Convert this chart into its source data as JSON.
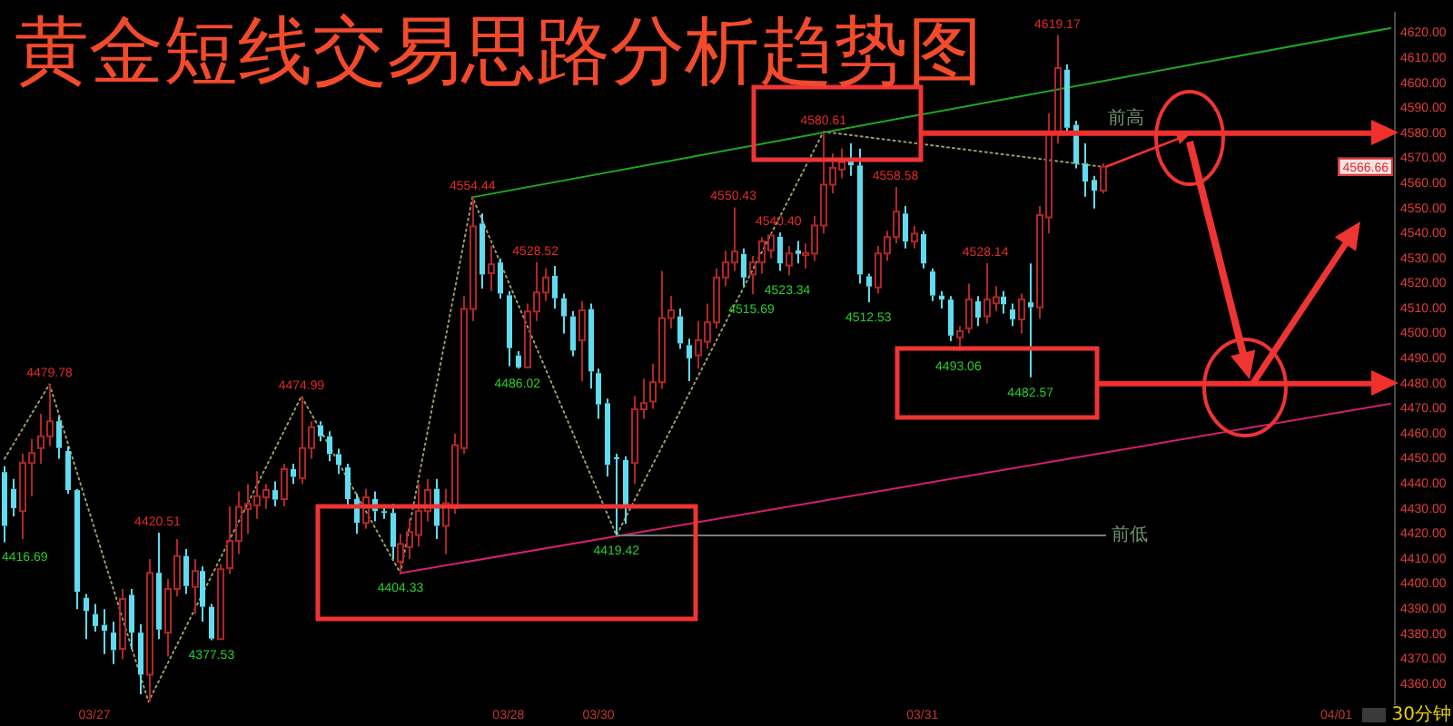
{
  "chart_data": {
    "type": "candlestick",
    "title": "黄金短线交易思路分析趋势图",
    "categories": [
      null,
      null,
      null,
      null,
      null,
      null,
      null,
      null,
      null,
      null,
      "03/27",
      null,
      null,
      null,
      null,
      null,
      null,
      null,
      null,
      null,
      null,
      null,
      null,
      null,
      null,
      null,
      null,
      null,
      null,
      null,
      null,
      null,
      null,
      null,
      null,
      null,
      null,
      null,
      null,
      null,
      null,
      null,
      null,
      null,
      null,
      null,
      null,
      null,
      null,
      null,
      null,
      null,
      null,
      null,
      null,
      null,
      "03/28",
      null,
      null,
      null,
      null,
      null,
      null,
      null,
      null,
      null,
      "03/30",
      null,
      null,
      null,
      null,
      null,
      null,
      null,
      null,
      null,
      null,
      null,
      null,
      null,
      null,
      null,
      null,
      null,
      null,
      null,
      null,
      null,
      null,
      null,
      null,
      null,
      null,
      null,
      null,
      null,
      null,
      null,
      null,
      null,
      null,
      null,
      "03/31",
      null,
      null,
      null,
      null,
      null,
      null,
      null,
      null,
      null,
      null,
      null,
      null,
      null,
      null,
      null,
      null,
      null,
      null,
      null,
      null,
      null,
      null,
      null,
      null,
      null,
      null,
      null,
      null,
      null,
      null,
      null,
      null,
      null,
      null,
      null,
      null,
      null,
      null,
      null,
      null,
      null,
      null,
      null,
      null,
      null,
      "04/01",
      null,
      null,
      null,
      null,
      null,
      null
    ],
    "ohlc": [
      [
        4444.7,
        4447.0,
        4416.69,
        4423.2
      ],
      [
        4438.0,
        4442.0,
        4427.0,
        4430.3
      ],
      [
        4429.1,
        4452.0,
        4418.0,
        4448.3
      ],
      [
        4448.3,
        4458.0,
        4435.0,
        4452.3
      ],
      [
        4454.3,
        4468.0,
        4448.0,
        4459.0
      ],
      [
        4459.0,
        4479.78,
        4455.0,
        4465.0
      ],
      [
        4465.0,
        4467.0,
        4450.0,
        4454.3
      ],
      [
        4453.1,
        4455.0,
        4436.0,
        4437.5
      ],
      [
        4437.5,
        4438.0,
        4390.0,
        4396.9
      ],
      [
        4394.5,
        4396.0,
        4378.0,
        4389.2
      ],
      [
        4388.0,
        4392.0,
        4381.0,
        4383.2
      ],
      [
        4383.7,
        4390.0,
        4372.0,
        4381.3
      ],
      [
        4380.6,
        4385.0,
        4368.0,
        4373.6
      ],
      [
        4374.1,
        4398.0,
        4370.0,
        4394.0
      ],
      [
        4395.7,
        4398.0,
        4374.0,
        4380.6
      ],
      [
        4380.6,
        4384.0,
        4356.0,
        4363.8
      ],
      [
        4363.8,
        4410.0,
        4353.0,
        4404.5
      ],
      [
        4404.5,
        4420.51,
        4378.0,
        4381.8
      ],
      [
        4380.6,
        4402.0,
        4371.0,
        4398.0
      ],
      [
        4398.0,
        4418.0,
        4395.0,
        4411.2
      ],
      [
        4411.2,
        4414.0,
        4396.0,
        4399.2
      ],
      [
        4398.8,
        4410.0,
        4388.0,
        4405.2
      ],
      [
        4405.2,
        4407.0,
        4385.0,
        4390.9
      ],
      [
        4390.9,
        4392.0,
        4377.53,
        4378.2
      ],
      [
        4378.0,
        4408.0,
        4377.8,
        4405.9
      ],
      [
        4406.4,
        4431.0,
        4404.0,
        4417.2
      ],
      [
        4417.2,
        4437.0,
        4412.0,
        4430.8
      ],
      [
        4429.9,
        4440.0,
        4420.0,
        4432.0
      ],
      [
        4431.5,
        4445.0,
        4426.0,
        4435.1
      ],
      [
        4434.6,
        4440.0,
        4430.0,
        4437.5
      ],
      [
        4437.5,
        4441.0,
        4431.0,
        4433.7
      ],
      [
        4433.9,
        4448.0,
        4431.0,
        4445.9
      ],
      [
        4445.9,
        4448.0,
        4440.0,
        4442.8
      ],
      [
        4442.3,
        4474.99,
        4440.0,
        4454.3
      ],
      [
        4454.3,
        4465.0,
        4450.0,
        4462.6
      ],
      [
        4463.4,
        4465.0,
        4457.0,
        4459.0
      ],
      [
        4459.0,
        4461.0,
        4449.0,
        4451.9
      ],
      [
        4451.9,
        4454.0,
        4444.0,
        4447.6
      ],
      [
        4446.6,
        4448.0,
        4431.0,
        4433.9
      ],
      [
        4433.9,
        4436.0,
        4420.0,
        4424.4
      ],
      [
        4424.4,
        4438.0,
        4422.0,
        4434.6
      ],
      [
        4433.9,
        4437.0,
        4425.0,
        4429.1
      ],
      [
        4429.1,
        4431.0,
        4426.0,
        4428.4
      ],
      [
        4428.4,
        4432.0,
        4410.0,
        4414.8
      ],
      [
        4409.0,
        4420.0,
        4404.33,
        4416.0
      ],
      [
        4414.8,
        4426.0,
        4410.0,
        4420.8
      ],
      [
        4419.6,
        4440.0,
        4415.0,
        4429.1
      ],
      [
        4429.1,
        4442.0,
        4425.0,
        4437.5
      ],
      [
        4438.0,
        4442.0,
        4418.0,
        4423.2
      ],
      [
        4423.2,
        4438.0,
        4412.0,
        4432.3
      ],
      [
        4430.3,
        4460.0,
        4428.0,
        4455.5
      ],
      [
        4454.3,
        4515.0,
        4452.0,
        4509.8
      ],
      [
        4509.8,
        4554.44,
        4505.0,
        4542.8
      ],
      [
        4544.0,
        4548.0,
        4518.0,
        4523.6
      ],
      [
        4524.1,
        4535.0,
        4517.0,
        4527.7
      ],
      [
        4528.4,
        4530.0,
        4514.0,
        4516.0
      ],
      [
        4515.3,
        4517.0,
        4487.0,
        4494.2
      ],
      [
        4491.3,
        4493.0,
        4486.02,
        4486.5
      ],
      [
        4486.5,
        4512.0,
        4486.3,
        4508.8
      ],
      [
        4508.8,
        4528.52,
        4505.0,
        4516.4
      ],
      [
        4516.4,
        4526.0,
        4513.0,
        4522.4
      ],
      [
        4523.1,
        4527.0,
        4510.0,
        4514.1
      ],
      [
        4514.1,
        4516.0,
        4500.0,
        4506.9
      ],
      [
        4506.9,
        4509.0,
        4491.0,
        4493.2
      ],
      [
        4497.3,
        4513.0,
        4481.0,
        4509.3
      ],
      [
        4509.8,
        4512.0,
        4478.0,
        4484.9
      ],
      [
        4484.2,
        4486.0,
        4466.0,
        4471.7
      ],
      [
        4472.2,
        4474.0,
        4443.0,
        4447.6
      ],
      [
        4450.6,
        4452.0,
        4419.42,
        4450.0
      ],
      [
        4449.5,
        4451.0,
        4424.0,
        4430.3
      ],
      [
        4448.3,
        4475.0,
        4440.0,
        4469.8
      ],
      [
        4469.8,
        4482.0,
        4466.0,
        4472.2
      ],
      [
        4472.9,
        4488.0,
        4470.0,
        4480.6
      ],
      [
        4480.6,
        4525.0,
        4478.0,
        4506.2
      ],
      [
        4506.2,
        4515.0,
        4502.0,
        4509.3
      ],
      [
        4506.9,
        4510.0,
        4494.0,
        4496.1
      ],
      [
        4495.4,
        4498.0,
        4481.0,
        4490.1
      ],
      [
        4491.3,
        4505.0,
        4486.0,
        4497.3
      ],
      [
        4496.8,
        4512.0,
        4494.0,
        4504.5
      ],
      [
        4504.5,
        4526.0,
        4502.0,
        4522.4
      ],
      [
        4522.4,
        4533.0,
        4519.0,
        4528.4
      ],
      [
        4528.4,
        4550.43,
        4525.0,
        4532.7
      ],
      [
        4531.8,
        4534.0,
        4519.0,
        4522.4
      ],
      [
        4523.6,
        4531.0,
        4515.69,
        4528.4
      ],
      [
        4528.4,
        4538.5,
        4524.0,
        4536.8
      ],
      [
        4533.2,
        4540.0,
        4530.0,
        4539.2
      ],
      [
        4538.7,
        4540.4,
        4525.0,
        4528.0
      ],
      [
        4527.2,
        4535.0,
        4523.34,
        4532.0
      ],
      [
        4533.2,
        4537.0,
        4528.0,
        4531.8
      ],
      [
        4531.3,
        4536.0,
        4526.0,
        4532.2
      ],
      [
        4532.0,
        4547.0,
        4529.0,
        4543.2
      ],
      [
        4543.2,
        4580.61,
        4540.0,
        4559.5
      ],
      [
        4559.5,
        4572.0,
        4556.0,
        4566.2
      ],
      [
        4565.5,
        4574.0,
        4562.0,
        4568.4
      ],
      [
        4569.6,
        4576.0,
        4563.0,
        4567.2
      ],
      [
        4567.2,
        4573.9,
        4520.0,
        4523.6
      ],
      [
        4522.9,
        4524.0,
        4512.53,
        4518.8
      ],
      [
        4518.4,
        4535.0,
        4516.0,
        4532.0
      ],
      [
        4532.0,
        4541.0,
        4529.0,
        4538.5
      ],
      [
        4538.5,
        4558.58,
        4536.0,
        4548.7
      ],
      [
        4548.0,
        4551.0,
        4534.0,
        4536.8
      ],
      [
        4536.8,
        4543.0,
        4534.0,
        4539.9
      ],
      [
        4539.7,
        4541.0,
        4526.0,
        4528.0
      ],
      [
        4524.8,
        4526.0,
        4513.0,
        4515.2
      ],
      [
        4515.2,
        4517.0,
        4510.0,
        4513.6
      ],
      [
        4513.6,
        4515.0,
        4497.0,
        4499.2
      ],
      [
        4498.5,
        4503.0,
        4493.06,
        4500.9
      ],
      [
        4502.1,
        4520.0,
        4500.0,
        4513.6
      ],
      [
        4512.9,
        4515.0,
        4503.0,
        4506.4
      ],
      [
        4506.9,
        4528.14,
        4504.0,
        4513.6
      ],
      [
        4512.1,
        4519.0,
        4509.0,
        4514.5
      ],
      [
        4514.8,
        4517.0,
        4508.0,
        4511.7
      ],
      [
        4509.7,
        4512.0,
        4503.0,
        4505.7
      ],
      [
        4505.7,
        4516.0,
        4500.0,
        4513.6
      ],
      [
        4512.5,
        4528.0,
        4482.57,
        4510.5
      ],
      [
        4510.5,
        4551.0,
        4506.0,
        4547.3
      ],
      [
        4546.4,
        4588.0,
        4540.0,
        4580.5
      ],
      [
        4580.0,
        4619.17,
        4576.0,
        4606.0
      ],
      [
        4605.4,
        4607.5,
        4580.3,
        4582.2
      ],
      [
        4583.4,
        4585.0,
        4566.0,
        4567.9
      ],
      [
        4567.9,
        4576.0,
        4554.7,
        4560.7
      ],
      [
        4561.4,
        4563.0,
        4550.0,
        4557.1
      ],
      [
        4557.1,
        4568.0,
        4556.0,
        4566.66
      ],
      null,
      null,
      null,
      null,
      null,
      null,
      null,
      null,
      null,
      null,
      null,
      null,
      null,
      null,
      null,
      null,
      null,
      null,
      null,
      null,
      null,
      null,
      null,
      null,
      null,
      null,
      null,
      null,
      null,
      null,
      null,
      null
    ],
    "colors": [
      "#5fdcf0",
      "#5fdcf0",
      "#b02626",
      "#b02626",
      "#b02626",
      "#b02626",
      "#5fdcf0",
      "#5fdcf0",
      "#5fdcf0",
      "#5fdcf0",
      "#5fdcf0",
      "#5fdcf0",
      "#5fdcf0",
      "#b02626",
      "#5fdcf0",
      "#5fdcf0",
      "#b02626",
      "#5fdcf0",
      "#b02626",
      "#b02626",
      "#5fdcf0",
      "#b02626",
      "#5fdcf0",
      "#5fdcf0",
      "#b02626",
      "#b02626",
      "#b02626",
      "#b02626",
      "#b02626",
      "#b02626",
      "#5fdcf0",
      "#b02626",
      "#5fdcf0",
      "#b02626",
      "#b02626",
      "#5fdcf0",
      "#5fdcf0",
      "#5fdcf0",
      "#5fdcf0",
      "#5fdcf0",
      "#b02626",
      "#5fdcf0",
      "#5fdcf0",
      "#5fdcf0",
      "#b02626",
      "#b02626",
      "#b02626",
      "#b02626",
      "#5fdcf0",
      "#b02626",
      "#b02626",
      "#b02626",
      "#b02626",
      "#5fdcf0",
      "#b02626",
      "#5fdcf0",
      "#5fdcf0",
      "#5fdcf0",
      "#b02626",
      "#b02626",
      "#b02626",
      "#5fdcf0",
      "#5fdcf0",
      "#5fdcf0",
      "#b02626",
      "#5fdcf0",
      "#5fdcf0",
      "#5fdcf0",
      "#5fdcf0",
      "#5fdcf0",
      "#b02626",
      "#b02626",
      "#b02626",
      "#b02626",
      "#b02626",
      "#5fdcf0",
      "#5fdcf0",
      "#b02626",
      "#b02626",
      "#b02626",
      "#b02626",
      "#b02626",
      "#5fdcf0",
      "#b02626",
      "#b02626",
      "#b02626",
      "#5fdcf0",
      "#b02626",
      "#5fdcf0",
      "#b02626",
      "#b02626",
      "#b02626",
      "#b02626",
      "#b02626",
      "#5fdcf0",
      "#5fdcf0",
      "#5fdcf0",
      "#b02626",
      "#b02626",
      "#b02626",
      "#5fdcf0",
      "#b02626",
      "#5fdcf0",
      "#5fdcf0",
      "#5fdcf0",
      "#5fdcf0",
      "#b02626",
      "#b02626",
      "#5fdcf0",
      "#b02626",
      "#b02626",
      "#5fdcf0",
      "#5fdcf0",
      "#b02626",
      "#5fdcf0",
      "#b02626",
      "#b02626",
      "#b02626",
      "#5fdcf0",
      "#5fdcf0",
      "#5fdcf0",
      "#5fdcf0",
      "#b02626",
      null,
      null,
      null,
      null,
      null,
      null,
      null,
      null,
      null,
      null,
      null,
      null,
      null,
      null,
      null,
      null,
      null,
      null,
      null,
      null,
      null,
      null,
      null,
      null,
      null,
      null,
      null,
      null,
      null,
      null,
      null,
      null
    ],
    "series": [
      {
        "type": "line",
        "color": "#1fa81f",
        "line_style": "solid",
        "values": [
          null,
          null,
          null,
          null,
          null,
          null,
          null,
          null,
          null,
          null,
          null,
          null,
          null,
          null,
          null,
          null,
          null,
          null,
          null,
          null,
          null,
          null,
          null,
          null,
          null,
          null,
          null,
          null,
          null,
          null,
          null,
          null,
          null,
          null,
          null,
          null,
          null,
          null,
          null,
          null,
          null,
          null,
          null,
          null,
          null,
          null,
          null,
          null,
          null,
          null,
          null,
          null,
          4554.44,
          null,
          null,
          null,
          null,
          null,
          null,
          null,
          null,
          null,
          null,
          null,
          null,
          null,
          null,
          null,
          null,
          null,
          null,
          null,
          null,
          null,
          null,
          null,
          null,
          null,
          null,
          null,
          null,
          null,
          null,
          null,
          null,
          null,
          null,
          null,
          null,
          null,
          null,
          null,
          null,
          null,
          null,
          null,
          null,
          null,
          null,
          null,
          null,
          null,
          null,
          null,
          null,
          null,
          null,
          null,
          null,
          null,
          null,
          null,
          null,
          null,
          null,
          null,
          null,
          null,
          null,
          null,
          null,
          null,
          null,
          null,
          null,
          null,
          null,
          null,
          null,
          null,
          null,
          null,
          null,
          null,
          null,
          null,
          null,
          null,
          null,
          null,
          null,
          null,
          null,
          null,
          null,
          null,
          null,
          null,
          null,
          null,
          null,
          null,
          null,
          null,
          4622
        ]
      },
      {
        "type": "line",
        "color": "#d4206e",
        "line_style": "solid",
        "values": [
          null,
          null,
          null,
          null,
          null,
          null,
          null,
          null,
          null,
          null,
          null,
          null,
          null,
          null,
          null,
          null,
          null,
          null,
          null,
          null,
          null,
          null,
          null,
          null,
          null,
          null,
          null,
          null,
          null,
          null,
          null,
          null,
          null,
          null,
          null,
          null,
          null,
          null,
          null,
          null,
          null,
          null,
          null,
          null,
          4404.33,
          null,
          null,
          null,
          null,
          null,
          null,
          null,
          null,
          null,
          null,
          null,
          null,
          null,
          null,
          null,
          null,
          null,
          null,
          null,
          null,
          null,
          null,
          null,
          null,
          null,
          null,
          null,
          null,
          null,
          null,
          null,
          null,
          null,
          null,
          null,
          null,
          null,
          null,
          null,
          null,
          null,
          null,
          null,
          null,
          null,
          null,
          null,
          null,
          null,
          null,
          null,
          null,
          null,
          null,
          null,
          null,
          null,
          null,
          null,
          null,
          null,
          null,
          null,
          null,
          null,
          null,
          null,
          null,
          null,
          null,
          null,
          null,
          null,
          null,
          null,
          null,
          null,
          null,
          null,
          null,
          null,
          null,
          null,
          null,
          null,
          null,
          null,
          null,
          null,
          null,
          null,
          null,
          null,
          null,
          null,
          null,
          null,
          null,
          null,
          null,
          null,
          null,
          null,
          null,
          null,
          null,
          null,
          null,
          null,
          4472
        ]
      },
      {
        "type": "line",
        "color": "#9a9a6a",
        "line_style": "dotted",
        "values": [
          4450,
          null,
          null,
          null,
          null,
          4479.78,
          null,
          null,
          null,
          null,
          null,
          null,
          null,
          null,
          null,
          null,
          4353.0,
          null,
          null,
          null,
          null,
          null,
          null,
          null,
          null,
          null,
          null,
          null,
          null,
          null,
          null,
          null,
          null,
          4474.99,
          null,
          null,
          null,
          null,
          null,
          null,
          null,
          null,
          null,
          null,
          4404.33,
          null,
          null,
          null,
          null,
          null,
          null,
          null,
          4554.44,
          null,
          null,
          null,
          null,
          null,
          null,
          null,
          null,
          null,
          null,
          null,
          null,
          null,
          null,
          null,
          4419.42,
          null,
          null,
          null,
          null,
          null,
          null,
          null,
          null,
          null,
          null,
          null,
          null,
          null,
          null,
          null,
          null,
          null,
          null,
          null,
          null,
          null,
          null,
          4580.61,
          null,
          null,
          null,
          null,
          null,
          null,
          null,
          null,
          null,
          null,
          null,
          null,
          null,
          null,
          null,
          null,
          null,
          null,
          null,
          null,
          null,
          null,
          null,
          null,
          null,
          null,
          null,
          null,
          null,
          null,
          4566.66,
          null,
          null,
          null,
          null,
          null,
          null,
          null,
          null,
          null,
          null,
          null,
          null,
          null,
          null,
          null,
          null,
          null,
          null,
          null,
          null,
          null,
          null,
          null,
          null,
          null,
          null,
          null,
          null,
          null,
          null,
          null,
          null
        ]
      }
    ],
    "ylim": [
      4352,
      4628
    ],
    "yticks": [
      {
        "value": 4360,
        "label": "4360.00"
      },
      {
        "value": 4370,
        "label": "4370.00"
      },
      {
        "value": 4380,
        "label": "4380.00"
      },
      {
        "value": 4390,
        "label": "4390.00"
      },
      {
        "value": 4400,
        "label": "4400.00"
      },
      {
        "value": 4410,
        "label": "4410.00"
      },
      {
        "value": 4420,
        "label": "4420.00"
      },
      {
        "value": 4430,
        "label": "4430.00"
      },
      {
        "value": 4440,
        "label": "4440.00"
      },
      {
        "value": 4450,
        "label": "4450.00"
      },
      {
        "value": 4460,
        "label": "4460.00"
      },
      {
        "value": 4470,
        "label": "4470.00"
      },
      {
        "value": 4480,
        "label": "4480.00"
      },
      {
        "value": 4490,
        "label": "4490.00"
      },
      {
        "value": 4500,
        "label": "4500.00"
      },
      {
        "value": 4510,
        "label": "4510.00"
      },
      {
        "value": 4520,
        "label": "4520.00"
      },
      {
        "value": 4530,
        "label": "4530.00"
      },
      {
        "value": 4540,
        "label": "4540.00"
      },
      {
        "value": 4550,
        "label": "4550.00"
      },
      {
        "value": 4560,
        "label": "4560.00"
      },
      {
        "value": 4570,
        "label": "4570.00"
      },
      {
        "value": 4580,
        "label": "4580.00"
      },
      {
        "value": 4590,
        "label": "4590.00"
      },
      {
        "value": 4600,
        "label": "4600.00"
      },
      {
        "value": 4610,
        "label": "4610.00"
      },
      {
        "value": 4620,
        "label": "4620.00"
      }
    ],
    "ref_lines": [
      {
        "axis": "y",
        "value": 4580,
        "label": "前高",
        "color": "#f0302c"
      },
      {
        "axis": "y",
        "value": 4480,
        "color": "#f0302c"
      },
      {
        "axis": "y",
        "value": 4419.42,
        "label": "前低",
        "color": "#7a7a7a"
      }
    ],
    "annotations": [
      {
        "text": "4416.69",
        "y": 4416.69
      },
      {
        "text": "4479.78",
        "y": 4479.78
      },
      {
        "text": "4420.51",
        "y": 4420.51
      },
      {
        "text": "4377.53",
        "y": 4377.53
      },
      {
        "text": "4474.99",
        "y": 4474.99
      },
      {
        "text": "4404.33",
        "y": 4404.33
      },
      {
        "text": "4554.44",
        "y": 4554.44
      },
      {
        "text": "4486.02",
        "y": 4486.02
      },
      {
        "text": "4528.52",
        "y": 4528.52
      },
      {
        "text": "4419.42",
        "y": 4419.42
      },
      {
        "text": "4550.43",
        "y": 4550.43
      },
      {
        "text": "4515.69",
        "y": 4515.69
      },
      {
        "text": "4540.40",
        "y": 4540.4
      },
      {
        "text": "4523.34",
        "y": 4523.34
      },
      {
        "text": "4580.61",
        "y": 4580.61
      },
      {
        "text": "4512.53",
        "y": 4512.53
      },
      {
        "text": "4558.58",
        "y": 4558.58
      },
      {
        "text": "4493.06",
        "y": 4493.06
      },
      {
        "text": "4528.14",
        "y": 4528.14
      },
      {
        "text": "4482.57",
        "y": 4482.57
      },
      {
        "text": "4619.17",
        "y": 4619.17
      },
      {
        "text": "4566.66",
        "y": 4566.66
      },
      "30分钟"
    ]
  }
}
